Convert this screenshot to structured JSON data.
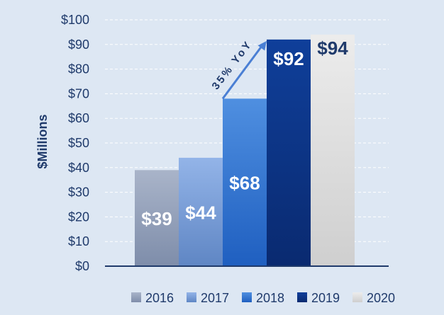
{
  "chart_data": {
    "type": "bar",
    "categories": [
      "2016",
      "2017",
      "2018",
      "2019",
      "2020"
    ],
    "values": [
      39,
      44,
      68,
      92,
      94
    ],
    "data_labels": [
      "$39",
      "$44",
      "$68",
      "$92",
      "$94"
    ],
    "ylabel": "$Millions",
    "ylim": [
      0,
      100
    ],
    "yticks": [
      0,
      10,
      20,
      30,
      40,
      50,
      60,
      70,
      80,
      90,
      100
    ],
    "ytick_labels": [
      "$0",
      "$10",
      "$20",
      "$30",
      "$40",
      "$50",
      "$60",
      "$70",
      "$80",
      "$90",
      "$100"
    ],
    "grid": true,
    "legend_position": "bottom",
    "legend": [
      "2016",
      "2017",
      "2018",
      "2019",
      "2020"
    ],
    "annotation": {
      "text": "35% YoY",
      "from_category": "2018",
      "to_category": "2019"
    },
    "colors": {
      "bars": [
        {
          "top": "#a9b4c9",
          "bottom": "#7e8daa",
          "label": "#ffffff"
        },
        {
          "top": "#93b4e8",
          "bottom": "#5f86c4",
          "label": "#ffffff"
        },
        {
          "top": "#4f8fe0",
          "bottom": "#1f5fc0",
          "label": "#ffffff"
        },
        {
          "top": "#0f3f9a",
          "bottom": "#0a2a70",
          "label": "#ffffff"
        },
        {
          "top": "#ececec",
          "bottom": "#cfcfcf",
          "label": "#1f3a6b"
        }
      ],
      "axis": "#1f3a6b",
      "grid": "#ffffff",
      "arrow": "#4a7fd4"
    }
  }
}
